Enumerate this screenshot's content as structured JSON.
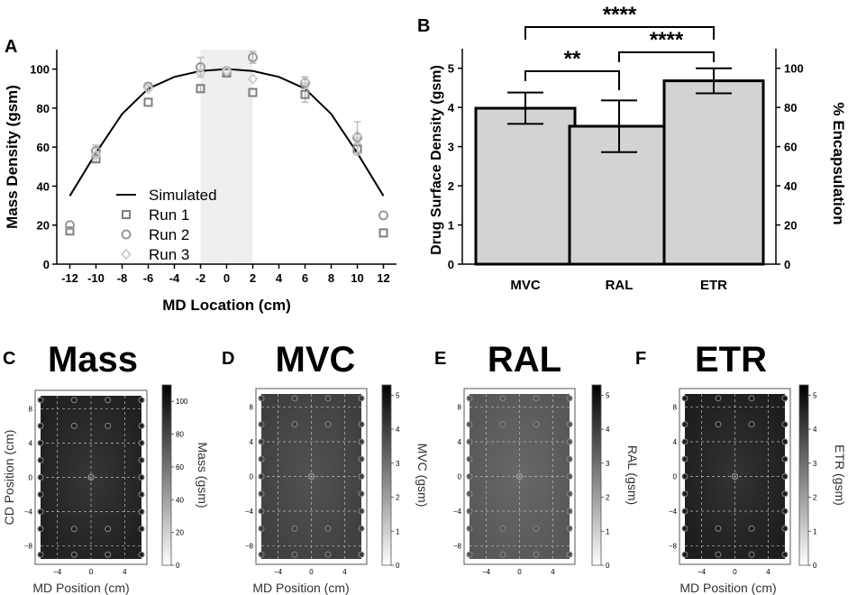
{
  "panels": {
    "A": "A",
    "B": "B",
    "C": "C",
    "D": "D",
    "E": "E",
    "F": "F"
  },
  "chart_data": [
    {
      "panel": "A",
      "type": "scatter",
      "xlabel": "MD Location (cm)",
      "ylabel": "Mass Density (gsm)",
      "xlim": [
        -13,
        13
      ],
      "ylim": [
        0,
        110
      ],
      "xticks": [
        -12,
        -10,
        -8,
        -6,
        -4,
        -2,
        0,
        2,
        4,
        6,
        8,
        10,
        12
      ],
      "xtick_labels": [
        "-12",
        "-10",
        "-8",
        "-6",
        "-4",
        "-2",
        "0",
        "2",
        "4",
        "6",
        "8",
        "10",
        "12"
      ],
      "yticks": [
        0,
        20,
        40,
        60,
        80,
        100
      ],
      "ytick_labels": [
        "0",
        "20",
        "40",
        "60",
        "80",
        "100"
      ],
      "shaded_region": [
        -2,
        2
      ],
      "legend": [
        "Simulated",
        "Run 1",
        "Run 2",
        "Run 3"
      ],
      "simulated": {
        "name": "Simulated",
        "x": [
          -12,
          -10,
          -8,
          -6,
          -4,
          -2,
          0,
          2,
          4,
          6,
          8,
          10,
          12
        ],
        "y": [
          35,
          57,
          77,
          90,
          96,
          99,
          100,
          99,
          96,
          90,
          77,
          57,
          35
        ]
      },
      "series": [
        {
          "name": "Run 1",
          "marker": "square",
          "x": [
            -12,
            -10,
            -6,
            -2,
            0,
            2,
            6,
            10,
            12
          ],
          "y": [
            17,
            54,
            83,
            90,
            98,
            88,
            87,
            59,
            16
          ],
          "err": [
            0,
            2,
            0,
            2,
            0,
            0,
            4,
            3,
            0
          ]
        },
        {
          "name": "Run 2",
          "marker": "circle",
          "x": [
            -12,
            -10,
            -6,
            -2,
            0,
            2,
            6,
            10,
            12
          ],
          "y": [
            20,
            58,
            91,
            101,
            99,
            106,
            93,
            65,
            25
          ],
          "err": [
            0,
            3,
            2,
            5,
            0,
            3,
            3,
            8,
            0
          ]
        },
        {
          "name": "Run 3",
          "marker": "diamond",
          "x": [
            -10,
            -6,
            -2,
            0,
            2,
            6,
            10
          ],
          "y": [
            56,
            90,
            98,
            99,
            95,
            94,
            66
          ],
          "err": [
            0,
            0,
            0,
            0,
            0,
            0,
            0
          ]
        }
      ]
    },
    {
      "panel": "B",
      "type": "bar",
      "categories": [
        "MVC",
        "RAL",
        "ETR"
      ],
      "values": [
        3.98,
        3.52,
        4.68
      ],
      "errors": [
        0.4,
        0.66,
        0.32
      ],
      "ylabel": "Drug Surface Density (gsm)",
      "y2label": "% Encapsulation",
      "ylim": [
        0,
        5.5
      ],
      "yticks": [
        0,
        1,
        2,
        3,
        4,
        5
      ],
      "ytick_labels": [
        "0",
        "1",
        "2",
        "3",
        "4",
        "5"
      ],
      "y2ticks": [
        0,
        20,
        40,
        60,
        80,
        100
      ],
      "y2tick_labels": [
        "0",
        "20",
        "40",
        "60",
        "80",
        "100"
      ],
      "significance": [
        {
          "from": "MVC",
          "to": "RAL",
          "label": "**"
        },
        {
          "from": "RAL",
          "to": "ETR",
          "label": "****"
        },
        {
          "from": "MVC",
          "to": "ETR",
          "label": "****"
        }
      ]
    },
    {
      "panel": "C",
      "type": "heatmap",
      "title": "Mass",
      "xlabel": "MD Position (cm)",
      "ylabel": "CD Position (cm)",
      "colorbar_label": "Mass (gsm)",
      "color_range": [
        0,
        110
      ],
      "colorbar_ticks": [
        0,
        20,
        40,
        60,
        80,
        100
      ],
      "colorbar_tick_labels": [
        "0",
        "20",
        "40",
        "60",
        "80",
        "100"
      ],
      "xticks": [
        -4,
        0,
        4
      ],
      "xtick_labels": [
        "−4",
        "0",
        "4"
      ],
      "yticks": [
        -8,
        -4,
        0,
        4,
        8
      ],
      "ytick_labels": [
        "−8",
        "−4",
        "0",
        "4",
        "8"
      ],
      "field_value": 96
    },
    {
      "panel": "D",
      "type": "heatmap",
      "title": "MVC",
      "xlabel": "MD Position (cm)",
      "colorbar_label": "MVC (gsm)",
      "color_range": [
        0,
        5.3
      ],
      "colorbar_ticks": [
        0,
        1,
        2,
        3,
        4,
        5
      ],
      "colorbar_tick_labels": [
        "0",
        "1",
        "2",
        "3",
        "4",
        "5"
      ],
      "xticks": [
        -4,
        0,
        4
      ],
      "xtick_labels": [
        "−4",
        "0",
        "4"
      ],
      "yticks": [
        -8,
        -4,
        0,
        4,
        8
      ],
      "ytick_labels": [
        "−8",
        "−4",
        "0",
        "4",
        "8"
      ],
      "field_value": 4.0
    },
    {
      "panel": "E",
      "type": "heatmap",
      "title": "RAL",
      "colorbar_label": "RAL (gsm)",
      "color_range": [
        0,
        5.3
      ],
      "colorbar_ticks": [
        0,
        1,
        2,
        3,
        4,
        5
      ],
      "colorbar_tick_labels": [
        "0",
        "1",
        "2",
        "3",
        "4",
        "5"
      ],
      "xticks": [
        -4,
        0,
        4
      ],
      "xtick_labels": [
        "−4",
        "0",
        "4"
      ],
      "yticks": [
        -8,
        -4,
        0,
        4,
        8
      ],
      "ytick_labels": [
        "−8",
        "−4",
        "0",
        "4",
        "8"
      ],
      "field_value": 3.5
    },
    {
      "panel": "F",
      "type": "heatmap",
      "title": "ETR",
      "xlabel": "MD Position (cm)",
      "colorbar_label": "ETR (gsm)",
      "color_range": [
        0,
        5.3
      ],
      "colorbar_ticks": [
        0,
        1,
        2,
        3,
        4,
        5
      ],
      "colorbar_tick_labels": [
        "0",
        "1",
        "2",
        "3",
        "4",
        "5"
      ],
      "xticks": [
        -4,
        0,
        4
      ],
      "xtick_labels": [
        "−4",
        "0",
        "4"
      ],
      "yticks": [
        -8,
        -4,
        0,
        4,
        8
      ],
      "ytick_labels": [
        "−8",
        "−4",
        "0",
        "4",
        "8"
      ],
      "field_value": 4.7
    }
  ]
}
